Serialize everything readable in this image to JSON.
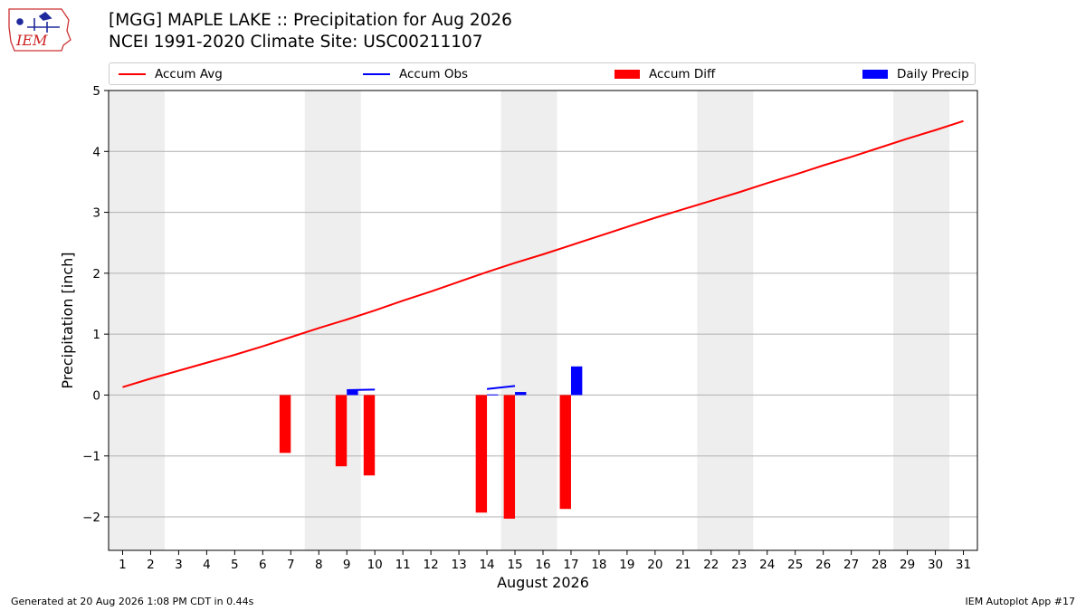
{
  "header": {
    "title_line1": "[MGG] MAPLE LAKE :: Precipitation for Aug 2026",
    "title_line2": "NCEI 1991-2020 Climate Site: USC00211107",
    "logo_text": "IEM"
  },
  "legend": {
    "items": [
      {
        "label": "Accum Avg",
        "color": "#ff0000",
        "kind": "line"
      },
      {
        "label": "Accum Obs",
        "color": "#0000ff",
        "kind": "line"
      },
      {
        "label": "Accum Diff",
        "color": "#ff0000",
        "kind": "box"
      },
      {
        "label": "Daily Precip",
        "color": "#0000ff",
        "kind": "box"
      }
    ]
  },
  "footer": {
    "left": "Generated at 20 Aug 2026 1:08 PM CDT in 0.44s",
    "right": "IEM Autoplot App #17"
  },
  "chart_data": {
    "type": "bar",
    "xlabel": "August 2026",
    "ylabel": "Precipitation [inch]",
    "xlim": [
      0.5,
      31.5
    ],
    "ylim": [
      -2.55,
      5.0
    ],
    "x_ticks": [
      1,
      2,
      3,
      4,
      5,
      6,
      7,
      8,
      9,
      10,
      11,
      12,
      13,
      14,
      15,
      16,
      17,
      18,
      19,
      20,
      21,
      22,
      23,
      24,
      25,
      26,
      27,
      28,
      29,
      30,
      31
    ],
    "y_ticks": [
      -2,
      -1,
      0,
      1,
      2,
      3,
      4,
      5
    ],
    "y_tick_labels": [
      "−2",
      "−1",
      "0",
      "1",
      "2",
      "3",
      "4",
      "5"
    ],
    "grid": "horizontal",
    "weekend_shading": [
      [
        0.5,
        2.5
      ],
      [
        7.5,
        9.5
      ],
      [
        14.5,
        16.5
      ],
      [
        21.5,
        23.5
      ],
      [
        28.5,
        30.5
      ]
    ],
    "shading_color": "#eeeeee",
    "series": [
      {
        "name": "Accum Avg",
        "kind": "line",
        "color": "#ff0000",
        "x": [
          1,
          2,
          3,
          4,
          5,
          6,
          7,
          8,
          9,
          10,
          11,
          12,
          13,
          14,
          15,
          16,
          17,
          18,
          19,
          20,
          21,
          22,
          23,
          24,
          25,
          26,
          27,
          28,
          29,
          30,
          31
        ],
        "values": [
          0.13,
          0.27,
          0.4,
          0.53,
          0.66,
          0.8,
          0.95,
          1.1,
          1.24,
          1.39,
          1.55,
          1.7,
          1.86,
          2.02,
          2.17,
          2.31,
          2.46,
          2.61,
          2.76,
          2.91,
          3.05,
          3.19,
          3.33,
          3.48,
          3.62,
          3.77,
          3.91,
          4.06,
          4.21,
          4.35,
          4.5
        ]
      },
      {
        "name": "Accum Obs",
        "kind": "line",
        "color": "#0000ff",
        "segments": [
          {
            "x": [
              9,
              10
            ],
            "values": [
              0.08,
              0.09
            ]
          },
          {
            "x": [
              14,
              15
            ],
            "values": [
              0.1,
              0.15
            ]
          }
        ]
      },
      {
        "name": "Accum Diff",
        "kind": "bar",
        "color": "#ff0000",
        "x": [
          7,
          9,
          10,
          14,
          15,
          17
        ],
        "values": [
          -0.95,
          -1.17,
          -1.32,
          -1.93,
          -2.03,
          -1.87
        ]
      },
      {
        "name": "Daily Precip",
        "kind": "bar",
        "color": "#0000ff",
        "x": [
          9,
          14,
          15,
          17
        ],
        "values": [
          0.08,
          0.01,
          0.05,
          0.47
        ]
      }
    ]
  }
}
